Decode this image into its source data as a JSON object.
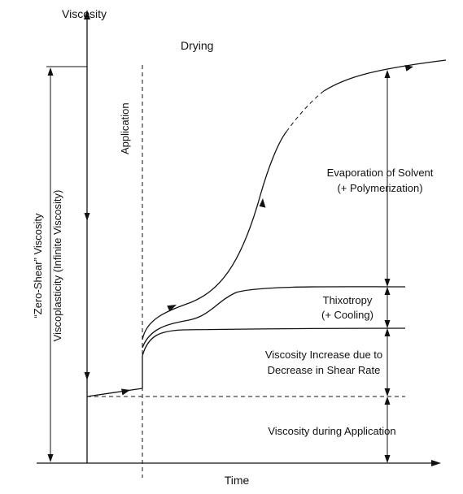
{
  "axes": {
    "y_label": "Viscosity",
    "x_label": "Time"
  },
  "phases": {
    "application": "Application",
    "drying": "Drying"
  },
  "left_annotation": {
    "line1": "“Zero-Shear” Viscosity",
    "line2": "Viscoplasticity (Infinite Viscosity)"
  },
  "right_annotations": {
    "evaporation_1": "Evaporation of Solvent",
    "evaporation_2": "(+ Polymerization)",
    "thixotropy_1": "Thixotropy",
    "thixotropy_2": "(+ Cooling)",
    "shear_rate_1": "Viscosity Increase due to",
    "shear_rate_2": "Decrease in Shear Rate",
    "application_viscosity": "Viscosity during Application"
  }
}
